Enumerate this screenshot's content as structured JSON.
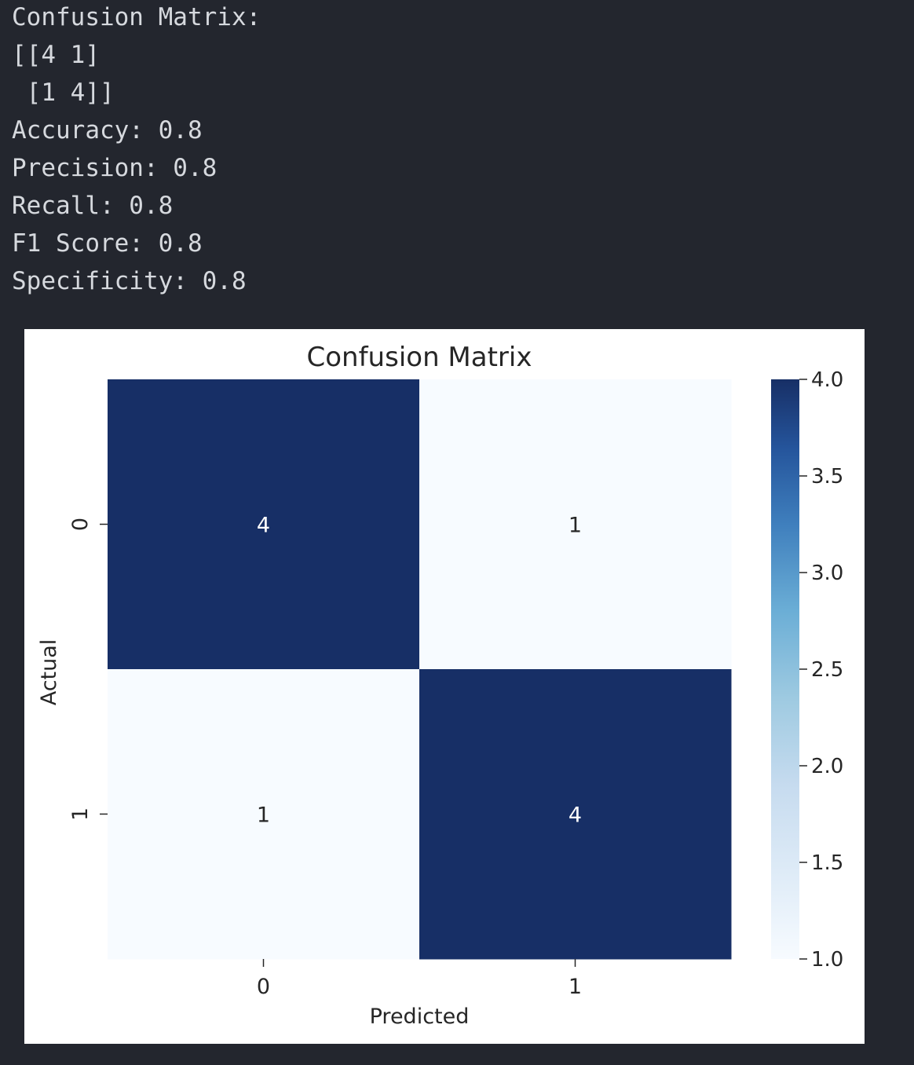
{
  "output": {
    "lines": [
      "Confusion Matrix:",
      "[[4 1]",
      " [1 4]]",
      "Accuracy: 0.8",
      "Precision: 0.8",
      "Recall: 0.8",
      "F1 Score: 0.8",
      "Specificity: 0.8"
    ]
  },
  "chart_data": {
    "type": "heatmap",
    "title": "Confusion Matrix",
    "xlabel": "Predicted",
    "ylabel": "Actual",
    "x_categories": [
      "0",
      "1"
    ],
    "y_categories": [
      "0",
      "1"
    ],
    "values": [
      [
        4,
        1
      ],
      [
        1,
        4
      ]
    ],
    "annotations": [
      [
        "4",
        "1"
      ],
      [
        "1",
        "4"
      ]
    ],
    "colormap": "Blues",
    "colorbar": {
      "range": [
        1.0,
        4.0
      ],
      "ticks": [
        "1.0",
        "1.5",
        "2.0",
        "2.5",
        "3.0",
        "3.5",
        "4.0"
      ]
    },
    "colors": {
      "high": "#172f66",
      "low": "#f7fbff",
      "cell_text_dark_bg": "#ffffff",
      "cell_text_light_bg": "#262626",
      "background": "#23262e",
      "console_text": "#d6d9de"
    }
  }
}
